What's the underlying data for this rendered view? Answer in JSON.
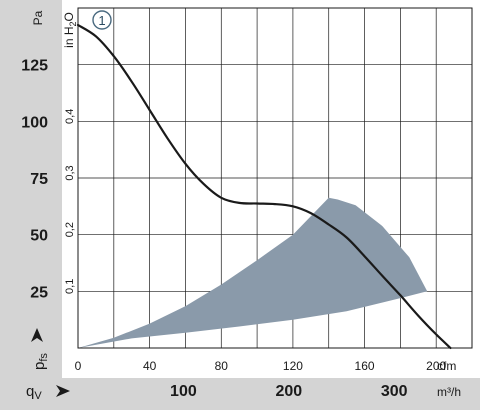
{
  "chart_data": {
    "type": "line",
    "title": "",
    "y_axis_left": {
      "unit": "Pa",
      "range": [
        0,
        150
      ],
      "ticks": [
        25,
        50,
        75,
        100,
        125
      ],
      "symbol": {
        "main": "p",
        "sub": "fs"
      }
    },
    "y_axis_inner": {
      "unit_main": "in H",
      "unit_sub": "2",
      "unit_tail": "O",
      "range": [
        0,
        0.6
      ],
      "ticks": [
        {
          "value": 0.1,
          "label": "0,1"
        },
        {
          "value": 0.2,
          "label": "0,2"
        },
        {
          "value": 0.3,
          "label": "0,3"
        },
        {
          "value": 0.4,
          "label": "0,4"
        }
      ]
    },
    "x_axis_cfm": {
      "unit": "cfm",
      "range": [
        0,
        220
      ],
      "ticks": [
        0,
        40,
        80,
        120,
        160,
        200
      ]
    },
    "x_axis_m3h": {
      "unit": "m³/h",
      "ticks": [
        100,
        200,
        300
      ],
      "symbol": {
        "main": "q",
        "sub": "V"
      }
    },
    "grid": true,
    "series": [
      {
        "name": "1",
        "color": "#1a1a1a",
        "points": [
          [
            0,
            0.57
          ],
          [
            10,
            0.55
          ],
          [
            20,
            0.515
          ],
          [
            30,
            0.47
          ],
          [
            40,
            0.42
          ],
          [
            50,
            0.37
          ],
          [
            60,
            0.325
          ],
          [
            70,
            0.29
          ],
          [
            80,
            0.265
          ],
          [
            90,
            0.256
          ],
          [
            100,
            0.255
          ],
          [
            110,
            0.254
          ],
          [
            120,
            0.25
          ],
          [
            130,
            0.238
          ],
          [
            140,
            0.218
          ],
          [
            150,
            0.195
          ],
          [
            160,
            0.162
          ],
          [
            170,
            0.127
          ],
          [
            180,
            0.093
          ],
          [
            190,
            0.057
          ],
          [
            200,
            0.024
          ],
          [
            208,
            0.0
          ]
        ]
      }
    ],
    "operating_range": {
      "color": "#8a9aaa",
      "points": [
        [
          0,
          0.0
        ],
        [
          30,
          0.017
        ],
        [
          60,
          0.027
        ],
        [
          90,
          0.038
        ],
        [
          120,
          0.05
        ],
        [
          150,
          0.065
        ],
        [
          180,
          0.088
        ],
        [
          195,
          0.1
        ],
        [
          185,
          0.16
        ],
        [
          170,
          0.215
        ],
        [
          155,
          0.252
        ],
        [
          145,
          0.262
        ],
        [
          140,
          0.265
        ],
        [
          120,
          0.2
        ],
        [
          100,
          0.155
        ],
        [
          80,
          0.112
        ],
        [
          60,
          0.074
        ],
        [
          40,
          0.043
        ],
        [
          20,
          0.018
        ],
        [
          0,
          0.0
        ]
      ]
    },
    "colors": {
      "panel_bg": "#d4d4d4",
      "grid": "#1a1a1a",
      "curve": "#1a1a1a",
      "area": "#8a9aaa",
      "text": "#1a1a1a"
    }
  }
}
